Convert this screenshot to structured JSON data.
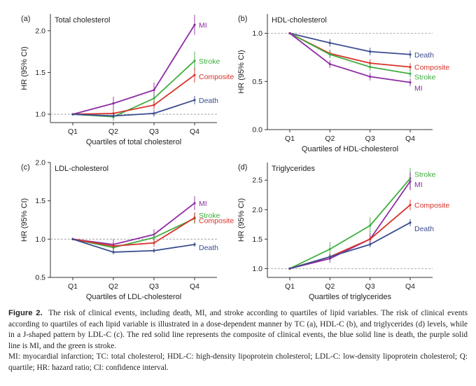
{
  "colors": {
    "MI": "#8e2ca3",
    "Stroke": "#3fae3f",
    "Composite": "#d7322a",
    "Death": "#3b4d8f",
    "axis": "#333333",
    "refline": "#999999"
  },
  "chart_data": [
    {
      "panel": "(a)",
      "type": "line",
      "title": "Total cholesterol",
      "xlabel": "Quartiles of total cholesterol",
      "ylabel": "HR (95% CI)",
      "categories": [
        "Q1",
        "Q2",
        "Q3",
        "Q4"
      ],
      "ylim": [
        0.9,
        2.2
      ],
      "yticks": [
        "1.0",
        "1.5",
        "2.0"
      ],
      "refline": 1.0,
      "series": [
        {
          "name": "MI",
          "values": [
            1.0,
            1.13,
            1.29,
            2.07
          ],
          "err": [
            0,
            0.08,
            0.09,
            0.12
          ]
        },
        {
          "name": "Stroke",
          "values": [
            1.0,
            0.97,
            1.19,
            1.64
          ],
          "err": [
            0,
            0.05,
            0.06,
            0.11
          ]
        },
        {
          "name": "Composite",
          "values": [
            1.0,
            1.01,
            1.11,
            1.47
          ],
          "err": [
            0,
            0.04,
            0.05,
            0.09
          ]
        },
        {
          "name": "Death",
          "values": [
            1.0,
            0.98,
            1.01,
            1.17
          ],
          "err": [
            0,
            0.03,
            0.04,
            0.05
          ]
        }
      ]
    },
    {
      "panel": "(b)",
      "type": "line",
      "title": "HDL-cholesterol",
      "xlabel": "Quartiles of HDL-cholesterol",
      "ylabel": "HR (95% CI)",
      "categories": [
        "Q1",
        "Q2",
        "Q3",
        "Q4"
      ],
      "ylim": [
        0.0,
        1.2
      ],
      "yticks": [
        "0.0",
        "0.5",
        "1.0"
      ],
      "refline": 1.0,
      "series": [
        {
          "name": "Death",
          "values": [
            1.0,
            0.9,
            0.81,
            0.78
          ],
          "err": [
            0,
            0.04,
            0.04,
            0.04
          ]
        },
        {
          "name": "Composite",
          "values": [
            1.0,
            0.79,
            0.69,
            0.65
          ],
          "err": [
            0,
            0.04,
            0.04,
            0.04
          ]
        },
        {
          "name": "Stroke",
          "values": [
            1.0,
            0.78,
            0.65,
            0.58
          ],
          "err": [
            0,
            0.04,
            0.04,
            0.04
          ]
        },
        {
          "name": "MI",
          "values": [
            1.0,
            0.68,
            0.55,
            0.49
          ],
          "err": [
            0,
            0.04,
            0.04,
            0.04
          ]
        }
      ]
    },
    {
      "panel": "(c)",
      "type": "line",
      "title": "LDL-cholesterol",
      "xlabel": "Quartiles of LDL-cholesterol",
      "ylabel": "HR (95% CI)",
      "categories": [
        "Q1",
        "Q2",
        "Q3",
        "Q4"
      ],
      "ylim": [
        0.5,
        2.0
      ],
      "yticks": [
        "0.5",
        "1.0",
        "1.5",
        "2.0"
      ],
      "refline": 1.0,
      "series": [
        {
          "name": "MI",
          "values": [
            1.0,
            0.93,
            1.06,
            1.47
          ],
          "err": [
            0,
            0.07,
            0.07,
            0.09
          ]
        },
        {
          "name": "Stroke",
          "values": [
            1.0,
            0.89,
            1.02,
            1.27
          ],
          "err": [
            0,
            0.05,
            0.06,
            0.07
          ]
        },
        {
          "name": "Composite",
          "values": [
            1.0,
            0.91,
            0.95,
            1.28
          ],
          "err": [
            0,
            0.04,
            0.05,
            0.07
          ]
        },
        {
          "name": "Death",
          "values": [
            1.0,
            0.83,
            0.85,
            0.93
          ],
          "err": [
            0,
            0.03,
            0.03,
            0.03
          ]
        }
      ]
    },
    {
      "panel": "(d)",
      "type": "line",
      "title": "Triglycerides",
      "xlabel": "Quartiles of triglycerides",
      "ylabel": "HR (95% CI)",
      "categories": [
        "Q1",
        "Q2",
        "Q3",
        "Q4"
      ],
      "ylim": [
        0.85,
        2.8
      ],
      "yticks": [
        "1.0",
        "1.5",
        "2.0",
        "2.5"
      ],
      "refline": 1.0,
      "series": [
        {
          "name": "Stroke",
          "values": [
            1.0,
            1.33,
            1.73,
            2.53
          ],
          "err": [
            0,
            0.12,
            0.14,
            0.18
          ]
        },
        {
          "name": "MI",
          "values": [
            1.0,
            1.17,
            1.5,
            2.48
          ],
          "err": [
            0,
            0.07,
            0.1,
            0.15
          ]
        },
        {
          "name": "Composite",
          "values": [
            1.0,
            1.2,
            1.5,
            2.08
          ],
          "err": [
            0,
            0.05,
            0.06,
            0.09
          ]
        },
        {
          "name": "Death",
          "values": [
            1.0,
            1.2,
            1.41,
            1.78
          ],
          "err": [
            0,
            0.04,
            0.05,
            0.06
          ]
        }
      ]
    }
  ],
  "caption": {
    "label": "Figure 2.",
    "text": "The risk of clinical events, including death, MI, and stroke according to quartiles of lipid variables. The risk of clinical events according to quartiles of each lipid variable is illustrated in a dose-dependent manner by TC (a), HDL-C (b), and triglycerides (d) levels, while in a J-shaped pattern by LDL-C (c). The red solid line represents the composite of clinical events, the blue solid line is death, the purple solid line is MI, and the green is stroke.",
    "abbreviations": "MI: myocardial infarction; TC: total cholesterol; HDL-C: high-density lipoprotein cholesterol; LDL-C: low-density lipoprotein cholesterol; Q: quartile; HR: hazard ratio; CI: confidence interval."
  }
}
